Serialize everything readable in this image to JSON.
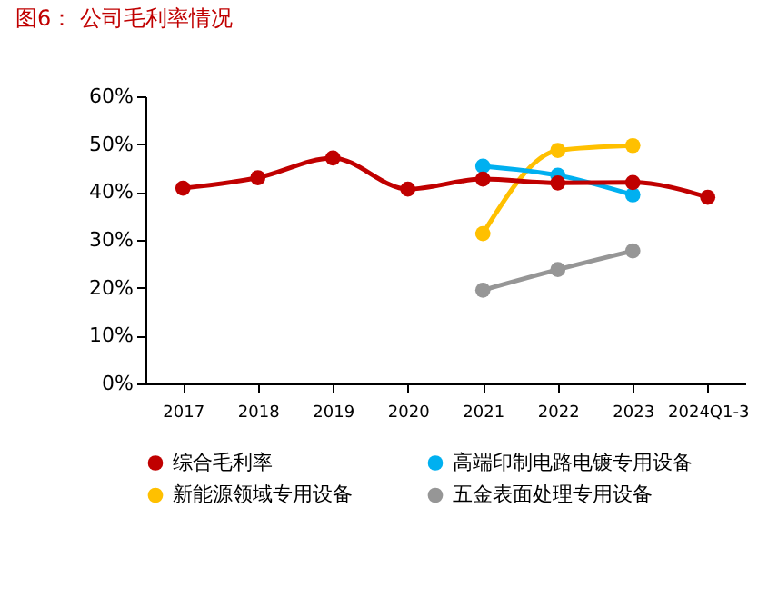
{
  "chart_data": {
    "type": "line",
    "title": "图6：  公司毛利率情况",
    "categories": [
      "2017",
      "2018",
      "2019",
      "2020",
      "2021",
      "2022",
      "2023",
      "2024Q1-3"
    ],
    "series": [
      {
        "name": "综合毛利率",
        "color": "#c00000",
        "values": [
          40.8,
          43.0,
          47.1,
          40.6,
          42.7,
          41.9,
          42.0,
          38.9
        ]
      },
      {
        "name": "高端印制电路电镀专用设备",
        "color": "#00b0f0",
        "values": [
          null,
          null,
          null,
          null,
          45.4,
          43.5,
          39.4,
          null
        ]
      },
      {
        "name": "新能源领域专用设备",
        "color": "#ffc000",
        "values": [
          null,
          null,
          null,
          null,
          31.3,
          48.7,
          49.7,
          null
        ]
      },
      {
        "name": "五金表面处理专用设备",
        "color": "#969696",
        "values": [
          null,
          null,
          null,
          null,
          19.5,
          23.8,
          27.7,
          null
        ]
      }
    ],
    "ylim": [
      0,
      60
    ],
    "yticks": [
      {
        "value": 0,
        "label": "0%"
      },
      {
        "value": 10,
        "label": "10%"
      },
      {
        "value": 20,
        "label": "20%"
      },
      {
        "value": 30,
        "label": "30%"
      },
      {
        "value": 40,
        "label": "40%"
      },
      {
        "value": 50,
        "label": "50%"
      },
      {
        "value": 60,
        "label": "60%"
      }
    ],
    "grid": false,
    "legend": "bottom",
    "marker": "circle",
    "line_style": "solid"
  }
}
